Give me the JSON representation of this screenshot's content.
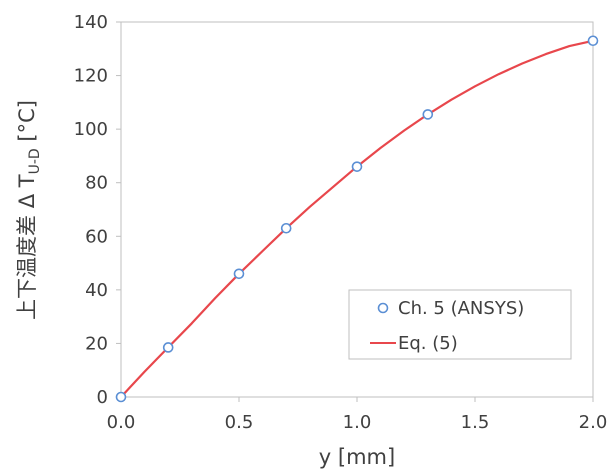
{
  "chart_data": {
    "type": "scatter",
    "xlabel": "y [mm]",
    "ylabel": {
      "prefix": "上下温度差  Δ T",
      "subscript": "U-D",
      "suffix": " [°C]"
    },
    "xlim": [
      0.0,
      2.0
    ],
    "ylim": [
      0,
      140
    ],
    "x_ticks": [
      "0.0",
      "0.5",
      "1.0",
      "1.5",
      "2.0"
    ],
    "y_ticks": [
      "0",
      "20",
      "40",
      "60",
      "80",
      "100",
      "120",
      "140"
    ],
    "grid": false,
    "legend_position": "bottom-right",
    "series": [
      {
        "name": "Ch. 5 (ANSYS)",
        "kind": "markers",
        "color": "#5B8FD4",
        "x": [
          0.0,
          0.2,
          0.5,
          0.7,
          1.0,
          1.3,
          2.0
        ],
        "y": [
          0,
          18.5,
          46,
          63,
          86,
          105.5,
          133
        ]
      },
      {
        "name": "Eq. (5)",
        "kind": "line",
        "color": "#E8474C",
        "x": [
          0.0,
          0.1,
          0.2,
          0.3,
          0.4,
          0.5,
          0.6,
          0.7,
          0.8,
          0.9,
          1.0,
          1.1,
          1.2,
          1.3,
          1.4,
          1.5,
          1.6,
          1.7,
          1.8,
          1.9,
          2.0
        ],
        "y": [
          0,
          9.5,
          18.5,
          27.5,
          37,
          46,
          54.5,
          63,
          71,
          78.5,
          86,
          93,
          99.5,
          105.5,
          111,
          116,
          120.5,
          124.5,
          128,
          131,
          133
        ]
      }
    ]
  }
}
